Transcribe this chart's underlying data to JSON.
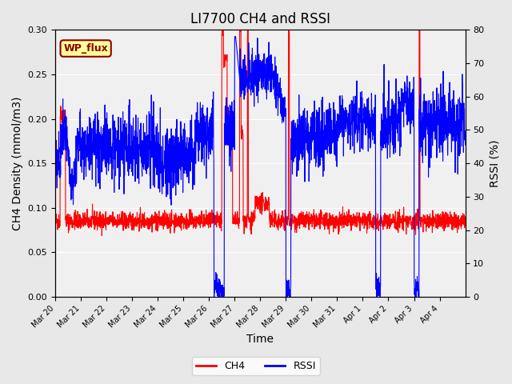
{
  "title": "LI7700 CH4 and RSSI",
  "xlabel": "Time",
  "ylabel_left": "CH4 Density (mmol/m3)",
  "ylabel_right": "RSSI (%)",
  "annotation": "WP_flux",
  "ylim_left": [
    0.0,
    0.3
  ],
  "ylim_right": [
    0,
    80
  ],
  "yticks_left": [
    0.0,
    0.05,
    0.1,
    0.15,
    0.2,
    0.25,
    0.3
  ],
  "yticks_right": [
    0,
    10,
    20,
    30,
    40,
    50,
    60,
    70,
    80
  ],
  "background_color": "#e8e8e8",
  "plot_bg_color": "#f0f0f0",
  "ch4_color": "#ff0000",
  "rssi_color": "#0000ff",
  "legend_ch4": "CH4",
  "legend_rssi": "RSSI",
  "title_fontsize": 12,
  "axis_fontsize": 10,
  "tick_labels": [
    "Mar 20",
    "Mar 21",
    "Mar 22",
    "Mar 23",
    "Mar 24",
    "Mar 25",
    "Mar 26",
    "Mar 27",
    "Mar 28",
    "Mar 29",
    "Mar 30",
    "Mar 31",
    "Apr 1",
    "Apr 2",
    "Apr 3",
    "Apr 4"
  ]
}
